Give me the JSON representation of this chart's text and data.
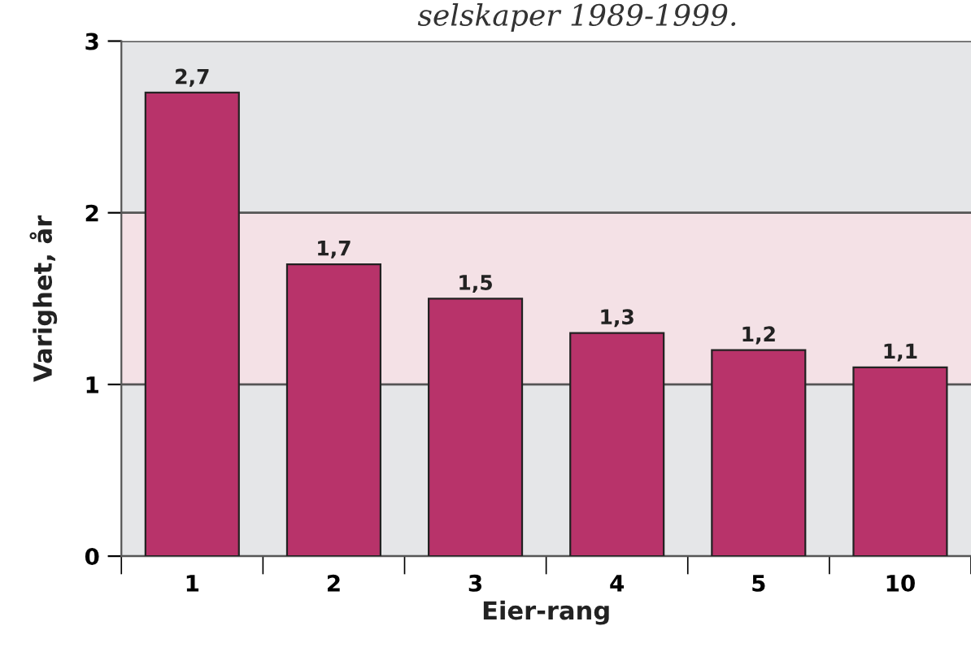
{
  "chart_data": {
    "type": "bar",
    "title": "selskaper 1989-1999.",
    "xlabel": "Eier-rang",
    "ylabel": "Varighet, år",
    "categories": [
      "1",
      "2",
      "3",
      "4",
      "5",
      "10"
    ],
    "values": [
      2.7,
      1.7,
      1.5,
      1.3,
      1.2,
      1.1
    ],
    "value_labels": [
      "2,7",
      "1,7",
      "1,5",
      "1,3",
      "1,2",
      "1,1"
    ],
    "color": "#b8336a",
    "ylim": [
      0,
      3
    ],
    "yticks": [
      0,
      1,
      2,
      3
    ],
    "grid": "y",
    "bands": [
      {
        "axis": "y",
        "from": 1,
        "to": 2,
        "color": "#f4e1e6"
      }
    ]
  }
}
